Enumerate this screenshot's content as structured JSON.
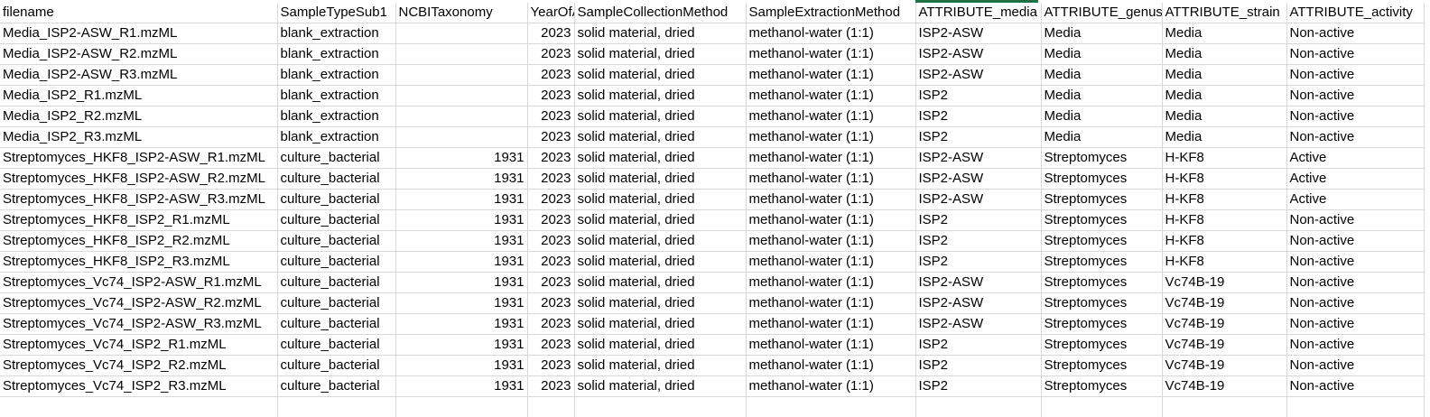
{
  "spreadsheet": {
    "headers": [
      "filename",
      "SampleTypeSub1",
      "NCBITaxonomy",
      "YearOfAna",
      "SampleCollectionMethod",
      "SampleExtractionMethod",
      "ATTRIBUTE_media",
      "ATTRIBUTE_genus",
      "ATTRIBUTE_strain",
      "ATTRIBUTE_activity"
    ],
    "active_column": "ATTRIBUTE_media",
    "active_column_color": "#1e7145",
    "gridline_color": "#d9d9d9",
    "rows": [
      [
        "Media_ISP2-ASW_R1.mzML",
        "blank_extraction",
        "",
        "2023",
        "solid material, dried",
        "methanol-water (1:1)",
        "ISP2-ASW",
        "Media",
        "Media",
        "Non-active"
      ],
      [
        "Media_ISP2-ASW_R2.mzML",
        "blank_extraction",
        "",
        "2023",
        "solid material, dried",
        "methanol-water (1:1)",
        "ISP2-ASW",
        "Media",
        "Media",
        "Non-active"
      ],
      [
        "Media_ISP2-ASW_R3.mzML",
        "blank_extraction",
        "",
        "2023",
        "solid material, dried",
        "methanol-water (1:1)",
        "ISP2-ASW",
        "Media",
        "Media",
        "Non-active"
      ],
      [
        "Media_ISP2_R1.mzML",
        "blank_extraction",
        "",
        "2023",
        "solid material, dried",
        "methanol-water (1:1)",
        "ISP2",
        "Media",
        "Media",
        "Non-active"
      ],
      [
        "Media_ISP2_R2.mzML",
        "blank_extraction",
        "",
        "2023",
        "solid material, dried",
        "methanol-water (1:1)",
        "ISP2",
        "Media",
        "Media",
        "Non-active"
      ],
      [
        "Media_ISP2_R3.mzML",
        "blank_extraction",
        "",
        "2023",
        "solid material, dried",
        "methanol-water (1:1)",
        "ISP2",
        "Media",
        "Media",
        "Non-active"
      ],
      [
        "Streptomyces_HKF8_ISP2-ASW_R1.mzML",
        "culture_bacterial",
        "1931",
        "2023",
        "solid material, dried",
        "methanol-water (1:1)",
        "ISP2-ASW",
        "Streptomyces",
        "H-KF8",
        "Active"
      ],
      [
        "Streptomyces_HKF8_ISP2-ASW_R2.mzML",
        "culture_bacterial",
        "1931",
        "2023",
        "solid material, dried",
        "methanol-water (1:1)",
        "ISP2-ASW",
        "Streptomyces",
        "H-KF8",
        "Active"
      ],
      [
        "Streptomyces_HKF8_ISP2-ASW_R3.mzML",
        "culture_bacterial",
        "1931",
        "2023",
        "solid material, dried",
        "methanol-water (1:1)",
        "ISP2-ASW",
        "Streptomyces",
        "H-KF8",
        "Active"
      ],
      [
        "Streptomyces_HKF8_ISP2_R1.mzML",
        "culture_bacterial",
        "1931",
        "2023",
        "solid material, dried",
        "methanol-water (1:1)",
        "ISP2",
        "Streptomyces",
        "H-KF8",
        "Non-active"
      ],
      [
        "Streptomyces_HKF8_ISP2_R2.mzML",
        "culture_bacterial",
        "1931",
        "2023",
        "solid material, dried",
        "methanol-water (1:1)",
        "ISP2",
        "Streptomyces",
        "H-KF8",
        "Non-active"
      ],
      [
        "Streptomyces_HKF8_ISP2_R3.mzML",
        "culture_bacterial",
        "1931",
        "2023",
        "solid material, dried",
        "methanol-water (1:1)",
        "ISP2",
        "Streptomyces",
        "H-KF8",
        "Non-active"
      ],
      [
        "Streptomyces_Vc74_ISP2-ASW_R1.mzML",
        "culture_bacterial",
        "1931",
        "2023",
        "solid material, dried",
        "methanol-water (1:1)",
        "ISP2-ASW",
        "Streptomyces",
        "Vc74B-19",
        "Non-active"
      ],
      [
        "Streptomyces_Vc74_ISP2-ASW_R2.mzML",
        "culture_bacterial",
        "1931",
        "2023",
        "solid material, dried",
        "methanol-water (1:1)",
        "ISP2-ASW",
        "Streptomyces",
        "Vc74B-19",
        "Non-active"
      ],
      [
        "Streptomyces_Vc74_ISP2-ASW_R3.mzML",
        "culture_bacterial",
        "1931",
        "2023",
        "solid material, dried",
        "methanol-water (1:1)",
        "ISP2-ASW",
        "Streptomyces",
        "Vc74B-19",
        "Non-active"
      ],
      [
        "Streptomyces_Vc74_ISP2_R1.mzML",
        "culture_bacterial",
        "1931",
        "2023",
        "solid material, dried",
        "methanol-water (1:1)",
        "ISP2",
        "Streptomyces",
        "Vc74B-19",
        "Non-active"
      ],
      [
        "Streptomyces_Vc74_ISP2_R2.mzML",
        "culture_bacterial",
        "1931",
        "2023",
        "solid material, dried",
        "methanol-water (1:1)",
        "ISP2",
        "Streptomyces",
        "Vc74B-19",
        "Non-active"
      ],
      [
        "Streptomyces_Vc74_ISP2_R3.mzML",
        "culture_bacterial",
        "1931",
        "2023",
        "solid material, dried",
        "methanol-water (1:1)",
        "ISP2",
        "Streptomyces",
        "Vc74B-19",
        "Non-active"
      ]
    ]
  }
}
